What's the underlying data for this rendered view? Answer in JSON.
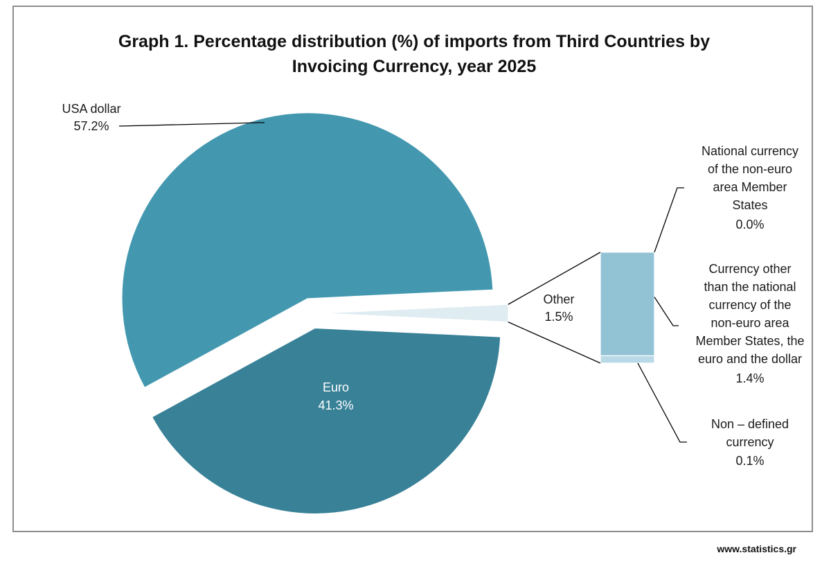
{
  "chart_data": {
    "type": "pie",
    "title_line1": "Graph 1. Percentage distribution (%) of imports from Third Countries by",
    "title_line2": "Invoicing Currency, year 2025",
    "slices": [
      {
        "name": "USA dollar",
        "value": 57.2,
        "label": "57.2%",
        "color": "#4398b0"
      },
      {
        "name": "Euro",
        "value": 41.3,
        "label": "41.3%",
        "color": "#388197"
      },
      {
        "name": "Other",
        "value": 1.5,
        "label": "1.5%",
        "color": "#dfecf1"
      }
    ],
    "breakdown": {
      "parent": "Other",
      "segments": [
        {
          "name_lines": [
            "National currency",
            "of the non-euro",
            "area Member",
            "States"
          ],
          "value": 0.0,
          "label": "0.0%",
          "color": "#92c3d5"
        },
        {
          "name_lines": [
            "Currency other",
            "than the national",
            "currency of the",
            "non-euro area",
            "Member States, the",
            "euro and the dollar"
          ],
          "value": 1.4,
          "label": "1.4%",
          "color": "#92c3d5"
        },
        {
          "name_lines": [
            "Non – defined",
            "currency"
          ],
          "value": 0.1,
          "label": "0.1%",
          "color": "#b9d9e6"
        }
      ]
    }
  },
  "source": "www.statistics.gr"
}
